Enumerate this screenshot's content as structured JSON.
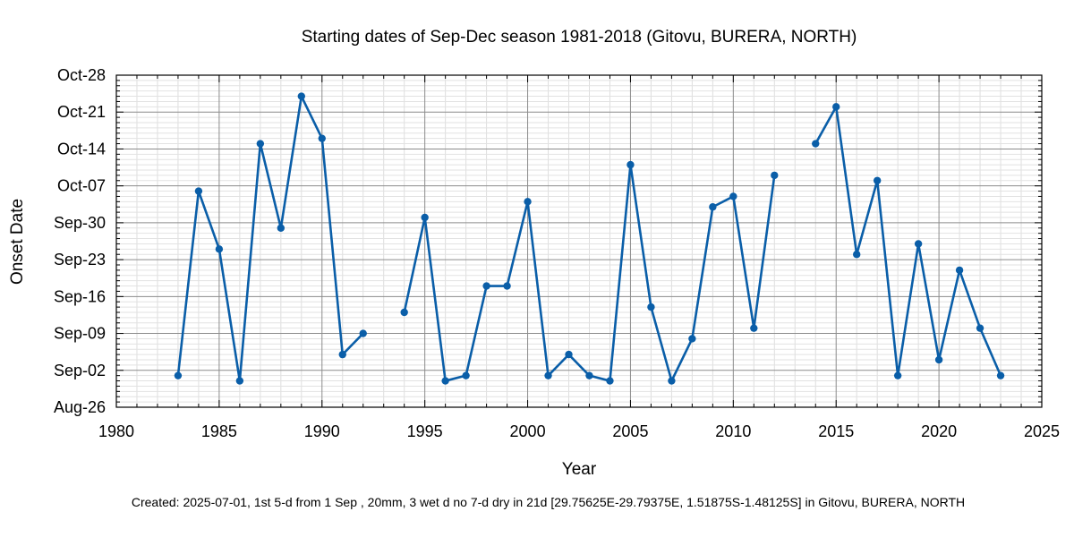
{
  "chart_data": {
    "type": "line",
    "title": "Starting dates of Sep-Dec season 1981-2018  (Gitovu, BURERA, NORTH)",
    "xlabel": "Year",
    "ylabel": "Onset Date",
    "footer": "Created: 2025-07-01, 1st 5-d from 1 Sep , 20mm, 3 wet d no 7-d dry in 21d [29.75625E-29.79375E, 1.51875S-1.48125S] in Gitovu, BURERA, NORTH",
    "xlim": [
      1980,
      2025
    ],
    "ylim": [
      "Aug-26",
      "Oct-28"
    ],
    "xticks": [
      1980,
      1985,
      1990,
      1995,
      2000,
      2005,
      2010,
      2015,
      2020,
      2025
    ],
    "yticks": [
      "Aug-26",
      "Sep-02",
      "Sep-09",
      "Sep-16",
      "Sep-23",
      "Sep-30",
      "Oct-07",
      "Oct-14",
      "Oct-21",
      "Oct-28"
    ],
    "grid": true,
    "line_color": "#0a5ea8",
    "series": [
      {
        "x": [
          1983,
          1984,
          1985,
          1986,
          1987,
          1988,
          1989,
          1990,
          1991,
          1992,
          1993,
          1994,
          1995,
          1996,
          1997,
          1998,
          1999,
          2000,
          2001,
          2002,
          2003,
          2004,
          2005,
          2006,
          2007,
          2008,
          2009,
          2010,
          2011,
          2012,
          2013,
          2014,
          2015,
          2016,
          2017,
          2018,
          2019,
          2020,
          2021,
          2022,
          2023
        ],
        "y": [
          "Sep-01",
          "Oct-06",
          "Sep-25",
          "Aug-31",
          "Oct-15",
          "Sep-29",
          "Oct-24",
          "Oct-16",
          "Sep-05",
          "Sep-09",
          null,
          "Sep-13",
          "Oct-01",
          "Aug-31",
          "Sep-01",
          "Sep-18",
          "Sep-18",
          "Oct-04",
          "Sep-01",
          "Sep-05",
          "Sep-01",
          "Aug-31",
          "Oct-11",
          "Sep-14",
          "Aug-31",
          "Sep-08",
          "Oct-03",
          "Oct-05",
          "Sep-10",
          "Oct-09",
          null,
          "Oct-15",
          "Oct-22",
          "Sep-24",
          "Oct-08",
          "Sep-01",
          "Sep-26",
          "Sep-04",
          "Sep-21",
          "Sep-10",
          "Sep-01"
        ]
      }
    ]
  }
}
